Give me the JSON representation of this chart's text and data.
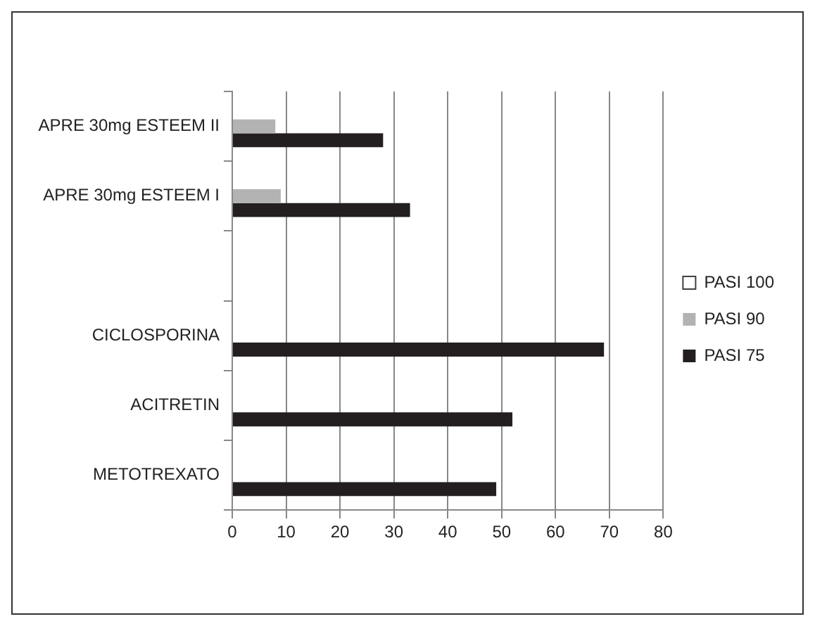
{
  "chart_data": {
    "type": "bar",
    "orientation": "horizontal",
    "categories": [
      "APRE 30mg ESTEEM II",
      "APRE 30mg ESTEEM I",
      null,
      "CICLOSPORINA",
      "ACITRETIN",
      "METOTREXATO"
    ],
    "series": [
      {
        "name": "PASI 100",
        "color": "#404040",
        "values": [
          null,
          null,
          null,
          null,
          null,
          null
        ]
      },
      {
        "name": "PASI 90",
        "color": "#b3b3b3",
        "values": [
          8,
          9,
          null,
          null,
          null,
          null
        ]
      },
      {
        "name": "PASI 75",
        "color": "#231f20",
        "values": [
          28,
          33,
          null,
          69,
          52,
          49
        ]
      }
    ],
    "xlim": [
      0,
      80
    ],
    "xticks": [
      0,
      10,
      20,
      30,
      40,
      50,
      60,
      70,
      80
    ],
    "grid": "x",
    "legend": "right"
  }
}
